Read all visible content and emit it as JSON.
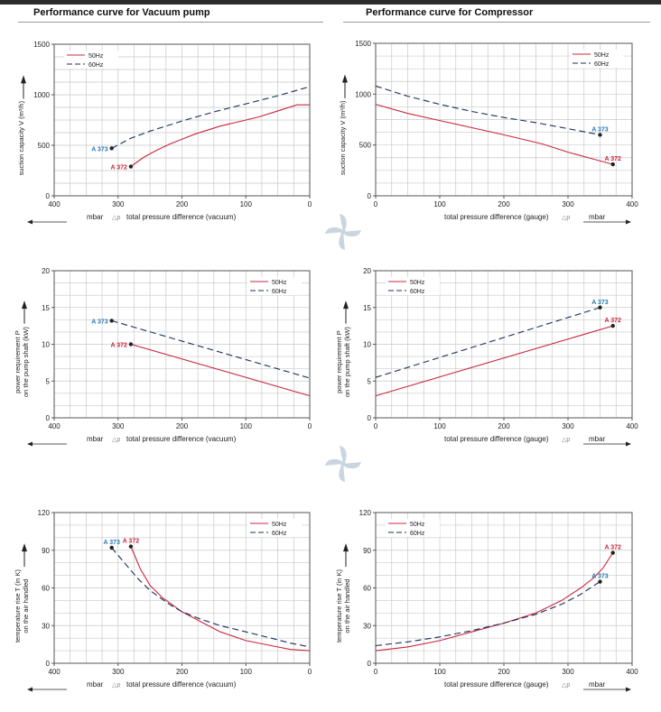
{
  "sections": {
    "vacuum": "Performance curve for Vacuum pump",
    "compressor": "Performance curve for Compressor"
  },
  "colors": {
    "c50": "#c8283c",
    "c60": "#1c2f5a",
    "a372": "#c8283c",
    "a373": "#2a7ab8",
    "grid": "#c9c9c9"
  },
  "chart_data": [
    {
      "id": "vac-capacity",
      "type": "line",
      "ylabel": [
        "suction capacity V (m³/h)"
      ],
      "xlabel": "total pressure difference (vacuum)",
      "x_unit": "mbar",
      "delta": "△p",
      "xlim": [
        400,
        0
      ],
      "ylim": [
        0,
        1500
      ],
      "xticks": [
        400,
        300,
        200,
        100,
        0
      ],
      "yticks": [
        0,
        500,
        1000,
        1500
      ],
      "grid": true,
      "legend": "top-left",
      "series": [
        {
          "name": "50Hz",
          "style": "solid",
          "x": [
            280,
            260,
            240,
            220,
            200,
            180,
            160,
            140,
            120,
            100,
            80,
            60,
            40,
            20,
            0
          ],
          "y": [
            290,
            380,
            450,
            510,
            560,
            610,
            650,
            690,
            720,
            750,
            780,
            820,
            860,
            900,
            900
          ]
        },
        {
          "name": "60Hz",
          "style": "dashed",
          "x": [
            310,
            280,
            250,
            220,
            200,
            150,
            100,
            50,
            0
          ],
          "y": [
            470,
            570,
            640,
            700,
            740,
            830,
            910,
            990,
            1080
          ]
        }
      ],
      "points": [
        {
          "label": "A 372",
          "x": 280,
          "y": 290,
          "color": "a372",
          "side": "left"
        },
        {
          "label": "A 373",
          "x": 310,
          "y": 470,
          "color": "a373",
          "side": "left"
        }
      ]
    },
    {
      "id": "comp-capacity",
      "type": "line",
      "ylabel": [
        "suction capacity V (m³/h)"
      ],
      "xlabel": "total pressure difference (gauge)",
      "x_unit": "mbar",
      "delta": "△p",
      "xlim": [
        0,
        400
      ],
      "ylim": [
        0,
        1500
      ],
      "xticks": [
        0,
        100,
        200,
        300,
        400
      ],
      "yticks": [
        0,
        500,
        1000,
        1500
      ],
      "grid": true,
      "legend": "top-right",
      "series": [
        {
          "name": "50Hz",
          "style": "solid",
          "x": [
            0,
            50,
            100,
            150,
            200,
            260,
            300,
            340,
            370
          ],
          "y": [
            900,
            810,
            740,
            670,
            600,
            510,
            430,
            360,
            310
          ]
        },
        {
          "name": "60Hz",
          "style": "dashed",
          "x": [
            0,
            50,
            100,
            150,
            200,
            250,
            300,
            350
          ],
          "y": [
            1080,
            980,
            900,
            830,
            770,
            720,
            660,
            600
          ]
        }
      ],
      "points": [
        {
          "label": "A 372",
          "x": 370,
          "y": 310,
          "color": "a372",
          "side": "above"
        },
        {
          "label": "A 373",
          "x": 350,
          "y": 600,
          "color": "a373",
          "side": "above"
        }
      ]
    },
    {
      "id": "vac-power",
      "type": "line",
      "ylabel": [
        "power requirement P",
        "on the pump shaft (kW)"
      ],
      "xlabel": "total pressure difference (vacuum)",
      "x_unit": "mbar",
      "delta": "△p",
      "xlim": [
        400,
        0
      ],
      "ylim": [
        0,
        20
      ],
      "xticks": [
        400,
        300,
        200,
        100,
        0
      ],
      "yticks": [
        0,
        5,
        10,
        15,
        20
      ],
      "grid": true,
      "legend": "top-right",
      "series": [
        {
          "name": "50Hz",
          "style": "solid",
          "x": [
            280,
            0
          ],
          "y": [
            10,
            3
          ]
        },
        {
          "name": "60Hz",
          "style": "dashed",
          "x": [
            310,
            0
          ],
          "y": [
            13.2,
            5.4
          ]
        }
      ],
      "points": [
        {
          "label": "A 372",
          "x": 280,
          "y": 10,
          "color": "a372",
          "side": "left"
        },
        {
          "label": "A 373",
          "x": 310,
          "y": 13.2,
          "color": "a373",
          "side": "left"
        }
      ]
    },
    {
      "id": "comp-power",
      "type": "line",
      "ylabel": [
        "power requirement P",
        "on the pump shaft (kW)"
      ],
      "xlabel": "total pressure difference (gauge)",
      "x_unit": "mbar",
      "delta": "△p",
      "xlim": [
        0,
        400
      ],
      "ylim": [
        0,
        20
      ],
      "xticks": [
        0,
        100,
        200,
        300,
        400
      ],
      "yticks": [
        0,
        5,
        10,
        15,
        20
      ],
      "grid": true,
      "legend": "top-left",
      "series": [
        {
          "name": "50Hz",
          "style": "solid",
          "x": [
            0,
            370
          ],
          "y": [
            3,
            12.5
          ]
        },
        {
          "name": "60Hz",
          "style": "dashed",
          "x": [
            0,
            350
          ],
          "y": [
            5.5,
            15
          ]
        }
      ],
      "points": [
        {
          "label": "A 372",
          "x": 370,
          "y": 12.5,
          "color": "a372",
          "side": "above"
        },
        {
          "label": "A 373",
          "x": 350,
          "y": 15,
          "color": "a373",
          "side": "above"
        }
      ]
    },
    {
      "id": "vac-temp",
      "type": "line",
      "ylabel": [
        "temperature rise T (in K)",
        "on the air handled"
      ],
      "xlabel": "total pressure difference (vacuum)",
      "x_unit": "mbar",
      "delta": "△p",
      "xlim": [
        400,
        0
      ],
      "ylim": [
        0,
        120
      ],
      "xticks": [
        400,
        300,
        200,
        100,
        0
      ],
      "yticks": [
        0,
        30,
        60,
        90,
        120
      ],
      "grid": true,
      "legend": "top-right",
      "series": [
        {
          "name": "50Hz",
          "style": "solid",
          "x": [
            280,
            265,
            250,
            230,
            200,
            170,
            140,
            100,
            60,
            30,
            0
          ],
          "y": [
            93,
            75,
            62,
            52,
            41,
            33,
            25,
            18,
            14,
            11,
            10
          ]
        },
        {
          "name": "60Hz",
          "style": "dashed",
          "x": [
            310,
            290,
            270,
            250,
            220,
            200,
            170,
            140,
            100,
            60,
            30,
            0
          ],
          "y": [
            92,
            80,
            68,
            58,
            47,
            41,
            35,
            30,
            25,
            20,
            16,
            13
          ]
        }
      ],
      "points": [
        {
          "label": "A 372",
          "x": 280,
          "y": 93,
          "color": "a372",
          "side": "above"
        },
        {
          "label": "A 373",
          "x": 310,
          "y": 92,
          "color": "a373",
          "side": "above"
        }
      ]
    },
    {
      "id": "comp-temp",
      "type": "line",
      "ylabel": [
        "temperature rise T (in K)",
        "on the air handled"
      ],
      "xlabel": "total pressure difference (gauge)",
      "x_unit": "mbar",
      "delta": "△p",
      "xlim": [
        0,
        400
      ],
      "ylim": [
        0,
        120
      ],
      "xticks": [
        0,
        100,
        200,
        300,
        400
      ],
      "yticks": [
        0,
        30,
        60,
        90,
        120
      ],
      "grid": true,
      "legend": "top-left",
      "series": [
        {
          "name": "50Hz",
          "style": "solid",
          "x": [
            0,
            50,
            100,
            150,
            200,
            250,
            290,
            320,
            340,
            355,
            370
          ],
          "y": [
            10,
            13,
            18,
            25,
            32,
            40,
            50,
            60,
            68,
            76,
            88
          ]
        },
        {
          "name": "60Hz",
          "style": "dashed",
          "x": [
            0,
            50,
            100,
            150,
            200,
            250,
            290,
            320,
            350
          ],
          "y": [
            14,
            17,
            21,
            26,
            32,
            39,
            47,
            55,
            65
          ]
        }
      ],
      "points": [
        {
          "label": "A 372",
          "x": 370,
          "y": 88,
          "color": "a372",
          "side": "above"
        },
        {
          "label": "A 373",
          "x": 350,
          "y": 65,
          "color": "a373",
          "side": "above"
        }
      ]
    }
  ]
}
